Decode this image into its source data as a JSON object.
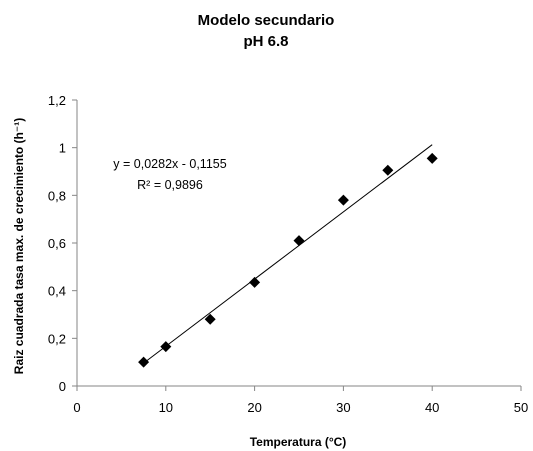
{
  "chart_data": {
    "type": "scatter",
    "title": [
      "Modelo secundario",
      "pH 6.8"
    ],
    "xlabel": "Temperatura (°C)",
    "ylabel": "Raiz cuadrada tasa max. de crecimiento (h⁻¹)",
    "xlim": [
      0,
      50
    ],
    "ylim": [
      0,
      1.2
    ],
    "x_ticks": [
      0,
      10,
      20,
      30,
      40,
      50
    ],
    "x_tick_labels": [
      "0",
      "10",
      "20",
      "30",
      "40",
      "50"
    ],
    "y_ticks": [
      0,
      0.2,
      0.4,
      0.6,
      0.8,
      1.0,
      1.2
    ],
    "y_tick_labels": [
      "0",
      "0,2",
      "0,4",
      "0,6",
      "0,8",
      "1",
      "1,2"
    ],
    "grid": false,
    "legend": "none",
    "series": [
      {
        "marker": "diamond",
        "color": "#000000",
        "x": [
          7.5,
          10,
          15,
          20,
          25,
          30,
          35,
          40
        ],
        "y": [
          0.1,
          0.165,
          0.28,
          0.435,
          0.61,
          0.78,
          0.905,
          0.955
        ]
      }
    ],
    "trendline": {
      "type": "linear",
      "slope": 0.0282,
      "intercept": -0.1155,
      "x_range": [
        7.5,
        40
      ],
      "color": "#000000"
    },
    "annotations": [
      "y = 0,0282x - 0,1155",
      "R² = 0,9896"
    ]
  }
}
